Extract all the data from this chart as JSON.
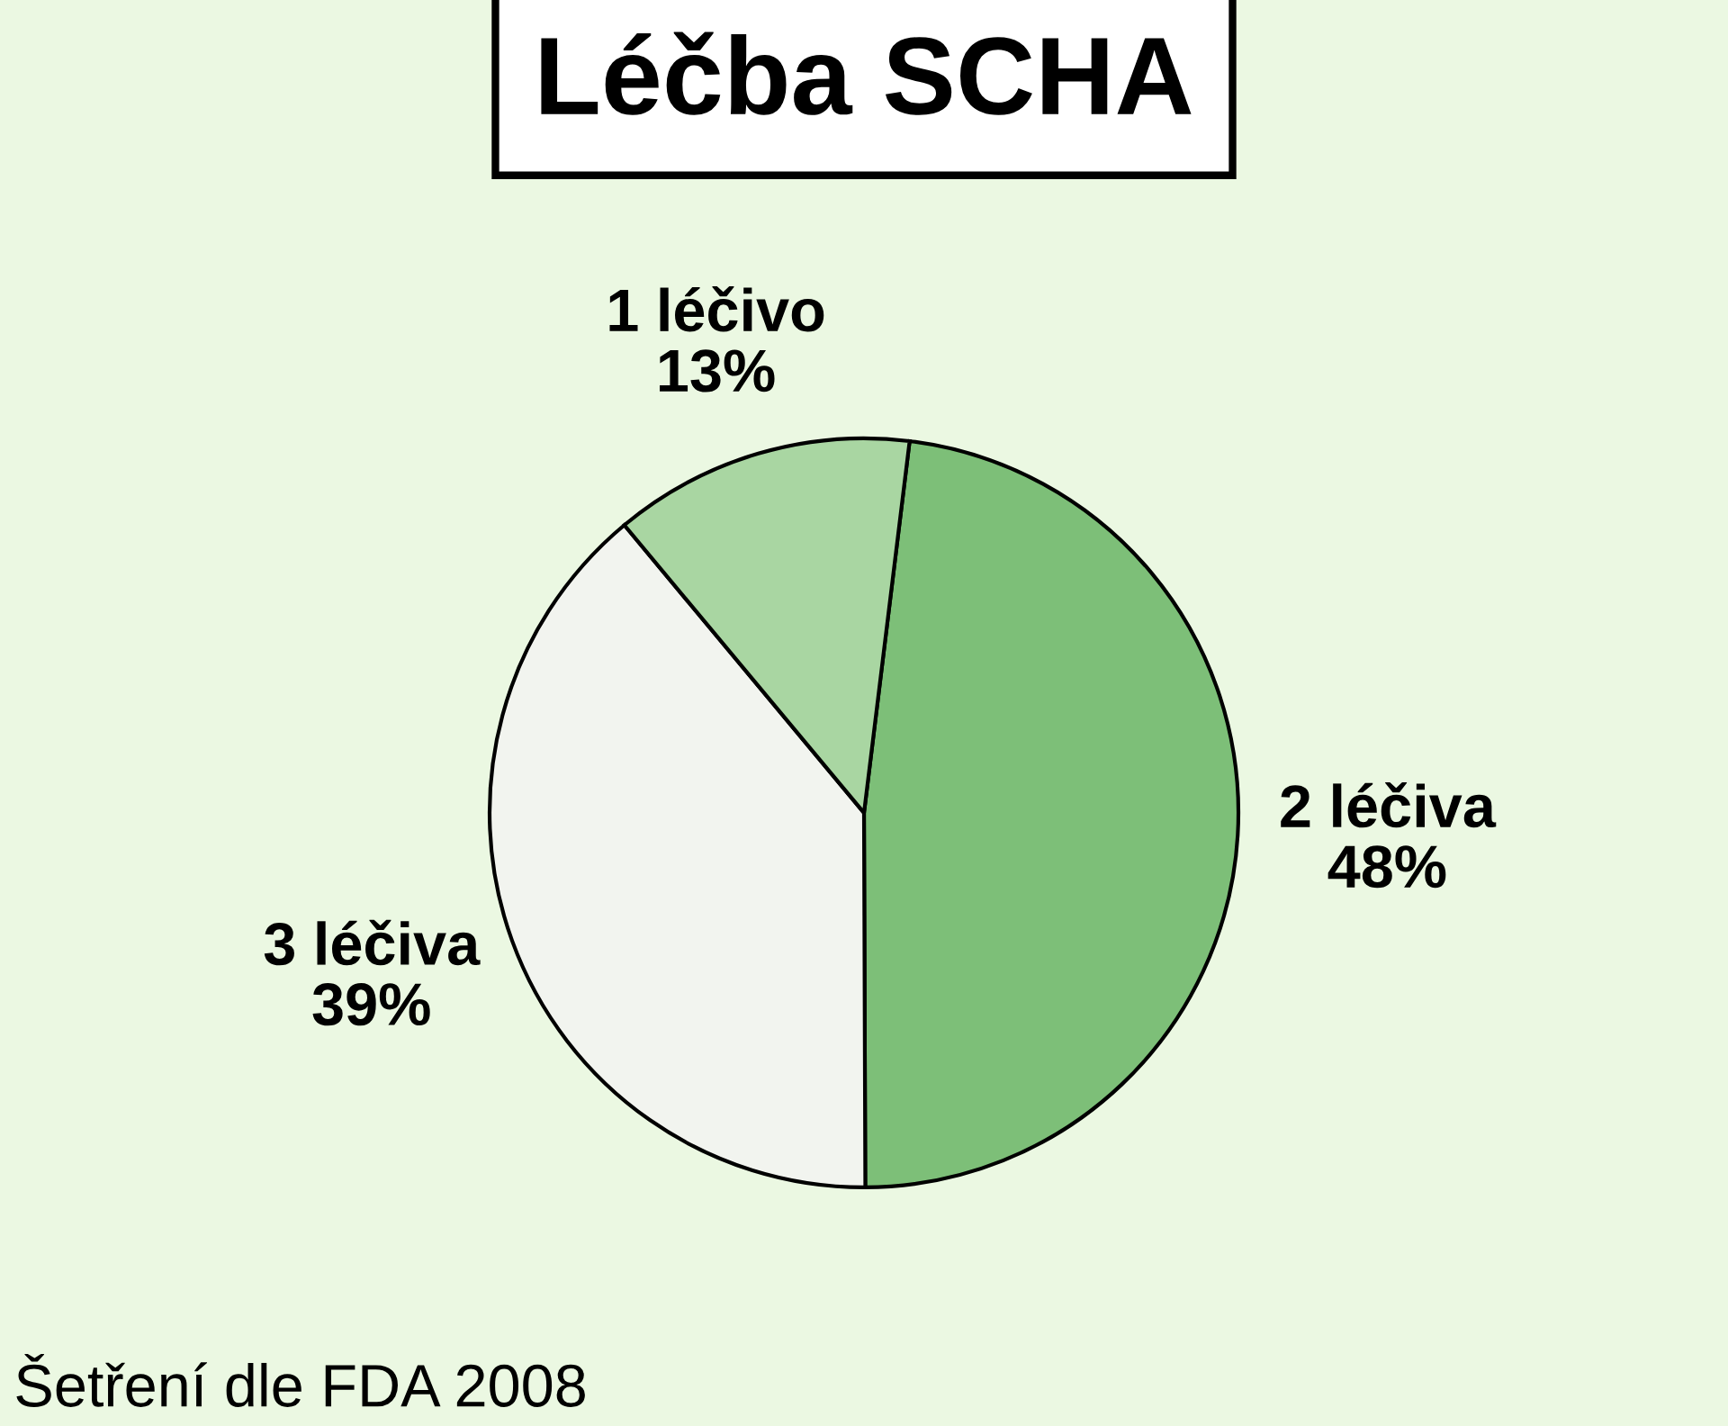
{
  "chart_data": {
    "type": "pie",
    "title": "Léčba SCHA",
    "categories": [
      "2 léčiva",
      "3 léčiva",
      "1 léčivo"
    ],
    "values": [
      48,
      39,
      13
    ],
    "value_labels": [
      "48%",
      "39%",
      "13%"
    ],
    "colors": [
      "#7dbf78",
      "#f2f4ef",
      "#a9d6a2"
    ],
    "annotations": [
      "Šetření dle FDA 2008"
    ],
    "legend": false
  }
}
